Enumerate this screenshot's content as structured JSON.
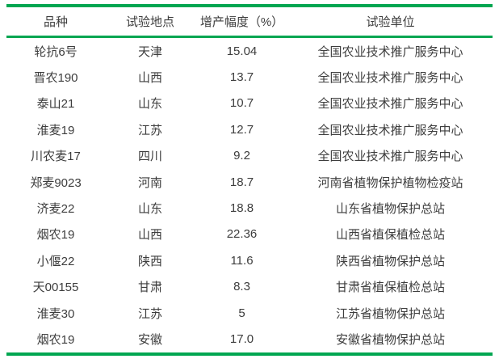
{
  "table": {
    "accent_color": "#00a651",
    "text_color": "#3d3d3d",
    "columns": [
      {
        "label": "品种"
      },
      {
        "label": "试验地点"
      },
      {
        "label": "增产幅度（%）"
      },
      {
        "label": "试验单位"
      }
    ],
    "rows": [
      {
        "variety": "轮抗6号",
        "location": "天津",
        "increase": "15.04",
        "unit": "全国农业技术推广服务中心"
      },
      {
        "variety": "晋农190",
        "location": "山西",
        "increase": "13.7",
        "unit": "全国农业技术推广服务中心"
      },
      {
        "variety": "泰山21",
        "location": "山东",
        "increase": "10.7",
        "unit": "全国农业技术推广服务中心"
      },
      {
        "variety": "淮麦19",
        "location": "江苏",
        "increase": "12.7",
        "unit": "全国农业技术推广服务中心"
      },
      {
        "variety": "川农麦17",
        "location": "四川",
        "increase": "9.2",
        "unit": "全国农业技术推广服务中心"
      },
      {
        "variety": "郑麦9023",
        "location": "河南",
        "increase": "18.7",
        "unit": "河南省植物保护植物检疫站"
      },
      {
        "variety": "济麦22",
        "location": "山东",
        "increase": "18.8",
        "unit": "山东省植物保护总站"
      },
      {
        "variety": "烟农19",
        "location": "山西",
        "increase": "22.36",
        "unit": "山西省植保植检总站"
      },
      {
        "variety": "小偃22",
        "location": "陕西",
        "increase": "11.6",
        "unit": "陕西省植物保护总站"
      },
      {
        "variety": "天00155",
        "location": "甘肃",
        "increase": "8.3",
        "unit": "甘肃省植保植检总站"
      },
      {
        "variety": "淮麦30",
        "location": "江苏",
        "increase": "5",
        "unit": "江苏省植物保护总站"
      },
      {
        "variety": "烟农19",
        "location": "安徽",
        "increase": "17.0",
        "unit": "安徽省植物保护总站"
      }
    ]
  }
}
